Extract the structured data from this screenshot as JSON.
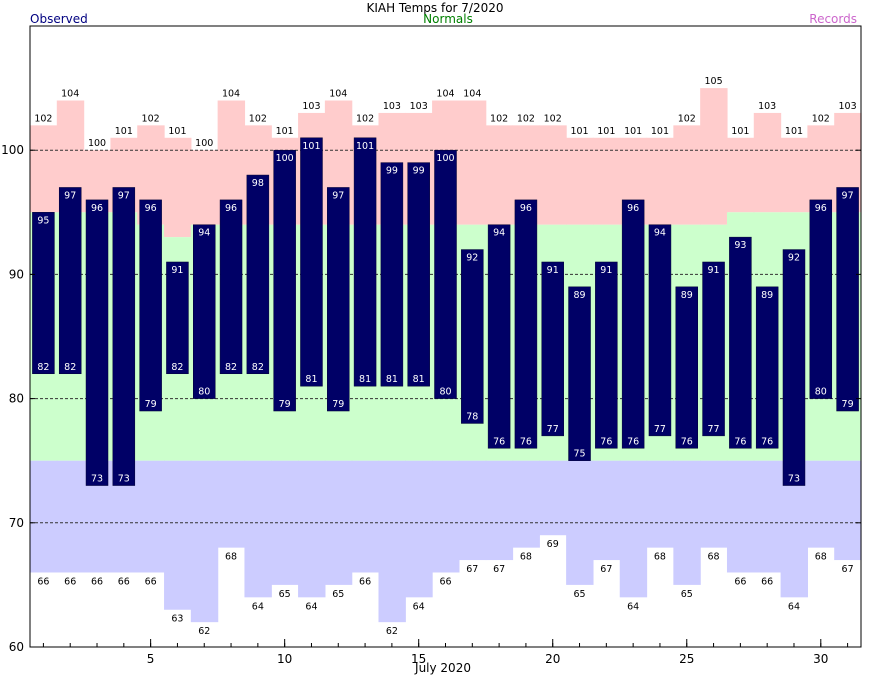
{
  "chart_data": {
    "type": "bar",
    "title": "KIAH Temps for 7/2020",
    "xlabel": "July 2020",
    "ylabel": "",
    "legend": {
      "observed": "Observed",
      "normals": "Normals",
      "records": "Records"
    },
    "colors": {
      "observed": "#000066",
      "observed_label": "#ffffff",
      "normals_band": "#ccffcc",
      "records_band": "#ffcccc",
      "records_low_band": "#ccccff",
      "observed_legend": "#000080",
      "normals_legend": "#008000",
      "records_legend": "#cc66cc",
      "grid": "#333333"
    },
    "xlim": [
      0.5,
      31.5
    ],
    "ylim": [
      60,
      110
    ],
    "x_ticks": [
      5,
      10,
      15,
      20,
      25,
      30
    ],
    "y_ticks": [
      60,
      70,
      80,
      90,
      100
    ],
    "days": [
      1,
      2,
      3,
      4,
      5,
      6,
      7,
      8,
      9,
      10,
      11,
      12,
      13,
      14,
      15,
      16,
      17,
      18,
      19,
      20,
      21,
      22,
      23,
      24,
      25,
      26,
      27,
      28,
      29,
      30,
      31
    ],
    "observed_high": [
      95,
      97,
      96,
      97,
      96,
      91,
      94,
      96,
      98,
      100,
      101,
      97,
      101,
      99,
      99,
      100,
      92,
      94,
      96,
      91,
      89,
      91,
      96,
      94,
      89,
      91,
      93,
      89,
      92,
      96,
      97
    ],
    "observed_low": [
      82,
      82,
      73,
      73,
      79,
      82,
      80,
      82,
      82,
      79,
      81,
      79,
      81,
      81,
      81,
      80,
      78,
      76,
      76,
      77,
      75,
      76,
      76,
      77,
      76,
      77,
      76,
      76,
      73,
      80,
      79
    ],
    "normal_high": [
      95,
      95,
      95,
      95,
      94,
      93,
      94,
      94,
      94,
      94,
      94,
      94,
      94,
      94,
      94,
      94,
      94,
      94,
      94,
      94,
      94,
      94,
      94,
      94,
      94,
      94,
      95,
      95,
      95,
      95,
      95
    ],
    "normal_low": [
      75,
      75,
      75,
      75,
      75,
      75,
      75,
      75,
      75,
      75,
      75,
      75,
      75,
      75,
      75,
      75,
      75,
      75,
      75,
      75,
      75,
      75,
      75,
      75,
      75,
      75,
      75,
      75,
      75,
      75,
      75
    ],
    "record_high": [
      102,
      104,
      100,
      101,
      102,
      101,
      100,
      104,
      102,
      101,
      103,
      104,
      102,
      103,
      103,
      104,
      104,
      102,
      102,
      102,
      101,
      101,
      101,
      101,
      102,
      105,
      101,
      103,
      101,
      102,
      103
    ],
    "record_low": [
      66,
      66,
      66,
      66,
      66,
      63,
      62,
      68,
      64,
      65,
      64,
      65,
      66,
      62,
      64,
      66,
      67,
      67,
      68,
      69,
      65,
      67,
      64,
      68,
      65,
      68,
      66,
      66,
      64,
      68,
      67
    ]
  }
}
